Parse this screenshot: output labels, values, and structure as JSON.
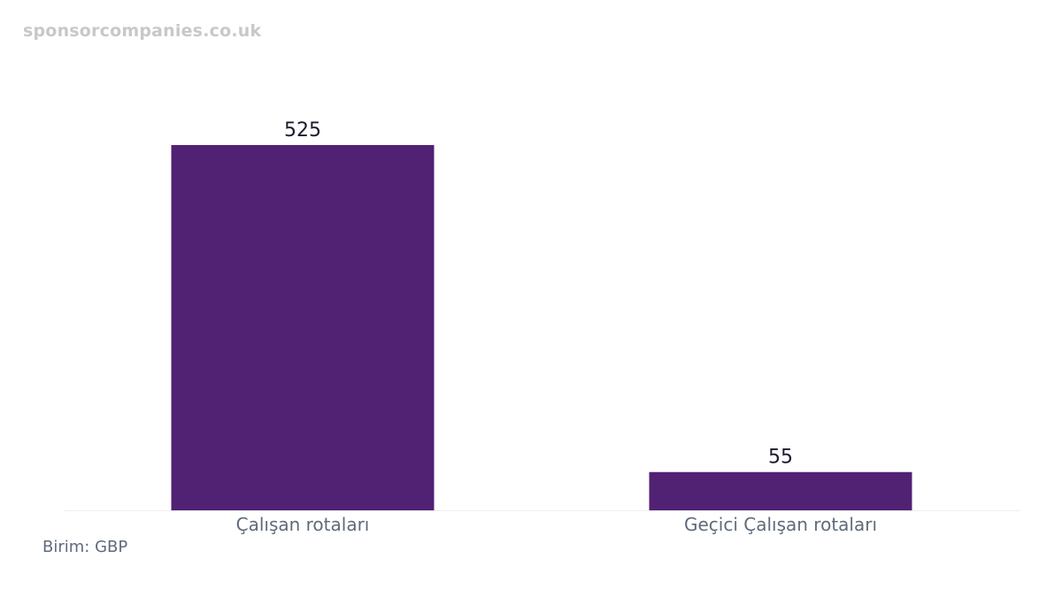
{
  "watermark": "sponsorcompanies.co.uk",
  "unit_label": "Birim: GBP",
  "colors": {
    "bar": "#512174",
    "baseline": "#eeeeee"
  },
  "chart_data": {
    "type": "bar",
    "categories": [
      "Çalışan rotaları",
      "Geçici Çalışan rotaları"
    ],
    "values": [
      525,
      55
    ],
    "ylim": [
      0,
      525
    ],
    "grid": false
  }
}
